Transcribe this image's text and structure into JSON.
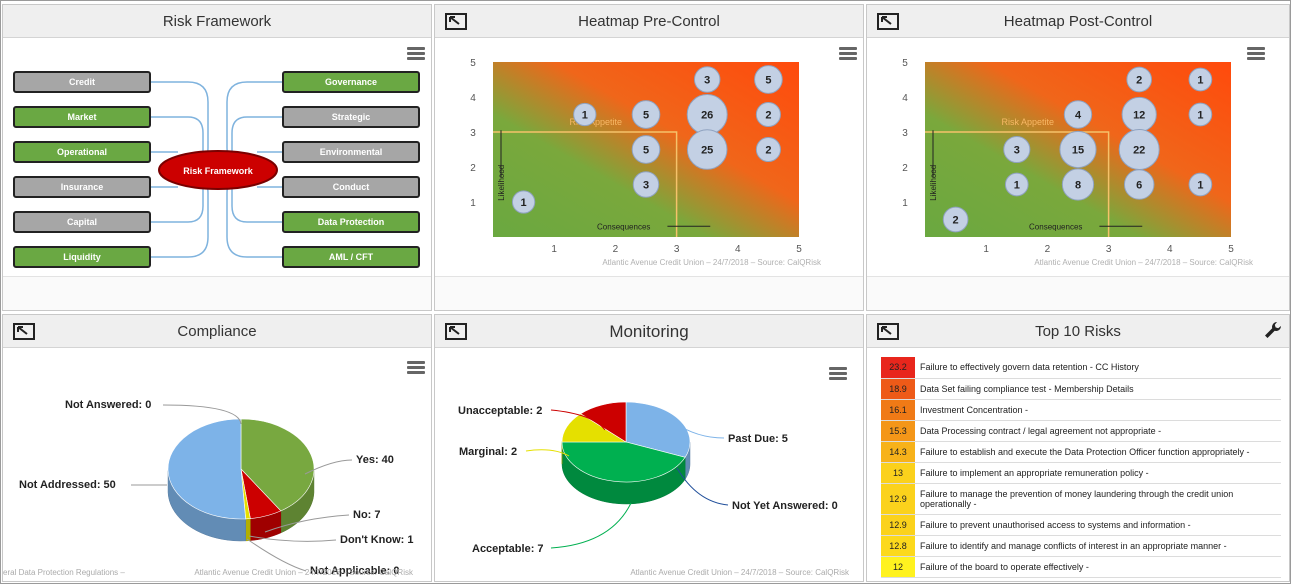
{
  "panels": {
    "risk_framework": {
      "title": "Risk Framework",
      "center_label": "Risk Framework",
      "left_items": [
        {
          "label": "Credit",
          "color": "grey"
        },
        {
          "label": "Market",
          "color": "green"
        },
        {
          "label": "Operational",
          "color": "green"
        },
        {
          "label": "Insurance",
          "color": "grey"
        },
        {
          "label": "Capital",
          "color": "grey"
        },
        {
          "label": "Liquidity",
          "color": "green"
        }
      ],
      "right_items": [
        {
          "label": "Governance",
          "color": "green"
        },
        {
          "label": "Strategic",
          "color": "grey"
        },
        {
          "label": "Environmental",
          "color": "grey"
        },
        {
          "label": "Conduct",
          "color": "grey"
        },
        {
          "label": "Data Protection",
          "color": "green"
        },
        {
          "label": "AML / CFT",
          "color": "green"
        }
      ]
    },
    "heatmap_pre": {
      "title": "Heatmap Pre-Control",
      "credit": "Atlantic Avenue Credit Union – 24/7/2018 – Source: CalQRisk"
    },
    "heatmap_post": {
      "title": "Heatmap Post-Control",
      "credit": "Atlantic Avenue Credit Union – 24/7/2018 – Source: CalQRisk"
    },
    "compliance": {
      "title": "Compliance",
      "credit": "Atlantic Avenue Credit Union – 24/7/2018 – Source: CalQRisk",
      "credit_left": "eral Data Protection Regulations –"
    },
    "monitoring": {
      "title": "Monitoring",
      "credit": "Atlantic Avenue Credit Union – 24/7/2018 – Source: CalQRisk"
    },
    "top10": {
      "title": "Top 10 Risks",
      "rows": [
        {
          "score": "23.2",
          "desc": "Failure to effectively govern data retention - CC History",
          "color": "#e8261c"
        },
        {
          "score": "18.9",
          "desc": "Data Set failing compliance test - Membership Details",
          "color": "#ee5a18"
        },
        {
          "score": "16.1",
          "desc": "Investment Concentration -",
          "color": "#f07a16"
        },
        {
          "score": "15.3",
          "desc": "Data Processing contract / legal agreement not appropriate -",
          "color": "#f49618"
        },
        {
          "score": "14.3",
          "desc": "Failure to establish and execute the Data Protection Officer function appropriately -",
          "color": "#f7b21a"
        },
        {
          "score": "13",
          "desc": "Failure to implement an appropriate remuneration policy -",
          "color": "#fbd11c"
        },
        {
          "score": "12.9",
          "desc": "Failure to manage the prevention of money laundering through the credit union operationally -",
          "color": "#fbd21c"
        },
        {
          "score": "12.9",
          "desc": "Failure to prevent unauthorised access to systems and information -",
          "color": "#fbd21c"
        },
        {
          "score": "12.8",
          "desc": "Failure to identify and manage conflicts of interest in an appropriate manner -",
          "color": "#fcd91c"
        },
        {
          "score": "12",
          "desc": "Failure of the board to operate effectively -",
          "color": "#fff21f"
        }
      ]
    }
  },
  "chart_data": [
    {
      "type": "scatter",
      "title": "Heatmap Pre-Control",
      "xlabel": "Consequences",
      "ylabel": "Likelihood",
      "xlim": [
        0,
        5
      ],
      "ylim": [
        0,
        5
      ],
      "xticks": [
        "1",
        "2",
        "3",
        "4",
        "5"
      ],
      "yticks": [
        "1",
        "2",
        "3",
        "4",
        "5"
      ],
      "annotation": "Risk Appetite",
      "appetite_limit": {
        "x": 3,
        "y": 3
      },
      "points": [
        {
          "x": 0.5,
          "y": 1,
          "label": "1"
        },
        {
          "x": 1.5,
          "y": 3.5,
          "label": "1"
        },
        {
          "x": 2.5,
          "y": 3.5,
          "label": "5"
        },
        {
          "x": 2.5,
          "y": 2.5,
          "label": "5"
        },
        {
          "x": 2.5,
          "y": 1.5,
          "label": "3"
        },
        {
          "x": 3.5,
          "y": 4.5,
          "label": "3"
        },
        {
          "x": 3.5,
          "y": 3.5,
          "label": "26"
        },
        {
          "x": 3.5,
          "y": 2.5,
          "label": "25"
        },
        {
          "x": 4.5,
          "y": 4.5,
          "label": "5"
        },
        {
          "x": 4.5,
          "y": 3.5,
          "label": "2"
        },
        {
          "x": 4.5,
          "y": 2.5,
          "label": "2"
        }
      ]
    },
    {
      "type": "scatter",
      "title": "Heatmap Post-Control",
      "xlabel": "Consequences",
      "ylabel": "Likelihood",
      "xlim": [
        0,
        5
      ],
      "ylim": [
        0,
        5
      ],
      "xticks": [
        "1",
        "2",
        "3",
        "4",
        "5"
      ],
      "yticks": [
        "1",
        "2",
        "3",
        "4",
        "5"
      ],
      "annotation": "Risk Appetite",
      "appetite_limit": {
        "x": 3,
        "y": 3
      },
      "points": [
        {
          "x": 0.5,
          "y": 0.5,
          "label": "2"
        },
        {
          "x": 1.5,
          "y": 2.5,
          "label": "3"
        },
        {
          "x": 1.5,
          "y": 1.5,
          "label": "1"
        },
        {
          "x": 2.5,
          "y": 3.5,
          "label": "4"
        },
        {
          "x": 2.5,
          "y": 2.5,
          "label": "15"
        },
        {
          "x": 2.5,
          "y": 1.5,
          "label": "8"
        },
        {
          "x": 3.5,
          "y": 4.5,
          "label": "2"
        },
        {
          "x": 3.5,
          "y": 3.5,
          "label": "12"
        },
        {
          "x": 3.5,
          "y": 2.5,
          "label": "22"
        },
        {
          "x": 3.5,
          "y": 1.5,
          "label": "6"
        },
        {
          "x": 4.5,
          "y": 4.5,
          "label": "1"
        },
        {
          "x": 4.5,
          "y": 3.5,
          "label": "1"
        },
        {
          "x": 4.5,
          "y": 1.5,
          "label": "1"
        }
      ]
    },
    {
      "type": "pie",
      "title": "Compliance",
      "slices": [
        {
          "name": "Yes",
          "value": 40,
          "label": "Yes: 40",
          "color": "#78a840"
        },
        {
          "name": "No",
          "value": 7,
          "label": "No: 7",
          "color": "#cc0000"
        },
        {
          "name": "Don't Know",
          "value": 1,
          "label": "Don't Know: 1",
          "color": "#e5e000"
        },
        {
          "name": "Not Applicable",
          "value": 0,
          "label": "Not Applicable: 0",
          "color": "#a0a0a0"
        },
        {
          "name": "Not Addressed",
          "value": 50,
          "label": "Not Addressed: 50",
          "color": "#7db3e8"
        },
        {
          "name": "Not Answered",
          "value": 0,
          "label": "Not Answered: 0",
          "color": "#888888"
        }
      ]
    },
    {
      "type": "pie",
      "title": "Monitoring",
      "slices": [
        {
          "name": "Past Due",
          "value": 5,
          "label": "Past Due: 5",
          "color": "#7db3e8"
        },
        {
          "name": "Not Yet Answered",
          "value": 0,
          "label": "Not Yet Answered: 0",
          "color": "#1f4e9a"
        },
        {
          "name": "Acceptable",
          "value": 7,
          "label": "Acceptable: 7",
          "color": "#00b050"
        },
        {
          "name": "Marginal",
          "value": 2,
          "label": "Marginal: 2",
          "color": "#e5e000"
        },
        {
          "name": "Unacceptable",
          "value": 2,
          "label": "Unacceptable: 2",
          "color": "#cc0000"
        }
      ]
    }
  ]
}
